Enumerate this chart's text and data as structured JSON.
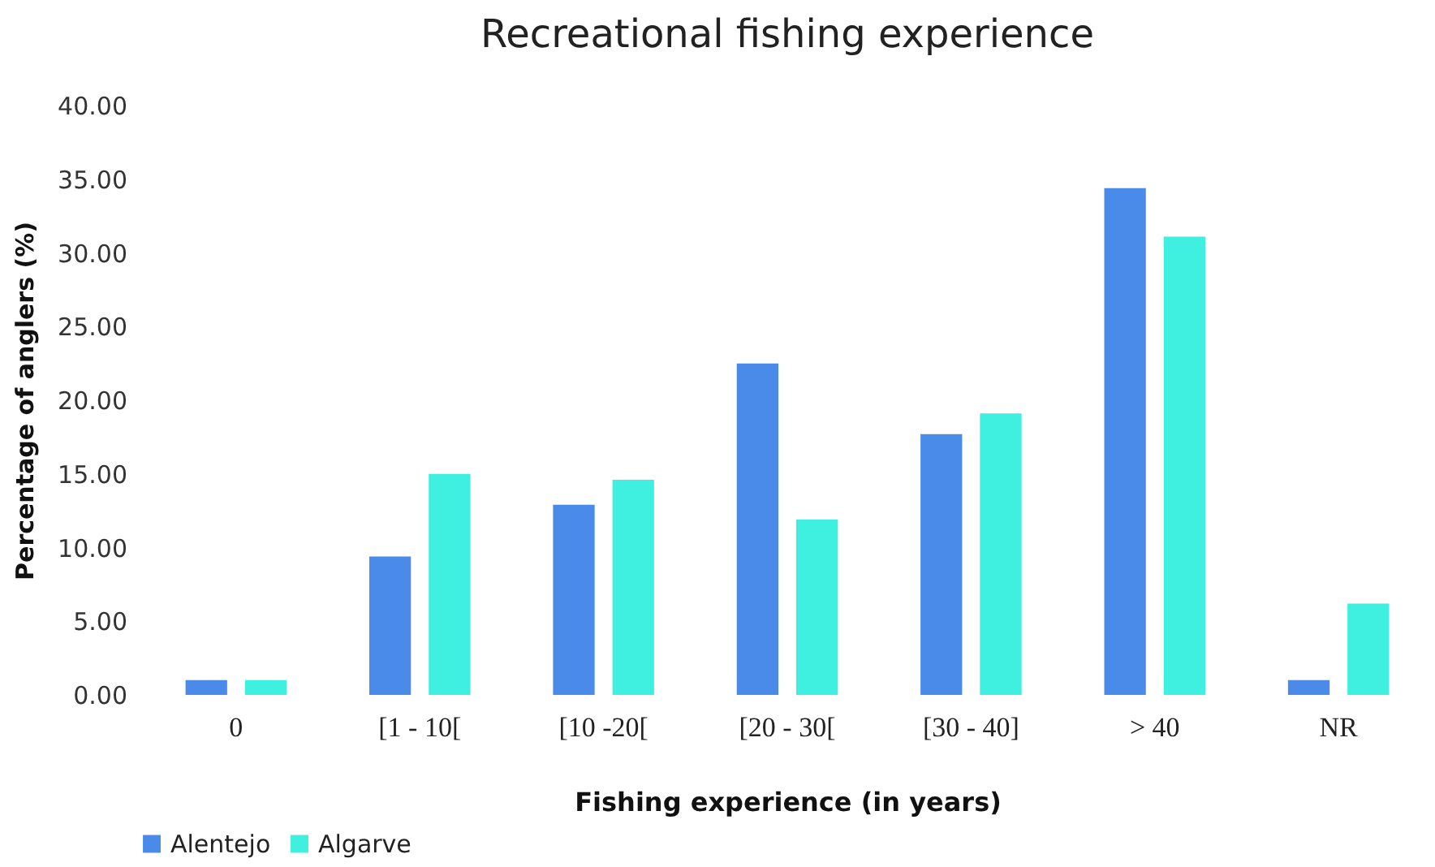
{
  "chart_data": {
    "type": "bar",
    "title": "Recreational fishing experience",
    "xlabel": "Fishing experience (in years)",
    "ylabel": "Percentage of anglers (%)",
    "categories": [
      "0",
      "[1 - 10[",
      "[10 -20[",
      "[20 - 30[",
      "[30 - 40]",
      "> 40",
      "NR"
    ],
    "series": [
      {
        "name": "Alentejo",
        "color": "#4a8bea",
        "values": [
          1.0,
          9.4,
          12.9,
          22.5,
          17.7,
          34.4,
          1.0
        ]
      },
      {
        "name": "Algarve",
        "color": "#3ff0e0",
        "values": [
          1.0,
          15.0,
          14.6,
          11.9,
          19.1,
          31.1,
          6.2
        ]
      }
    ],
    "ylim": [
      0,
      40
    ],
    "yticks": [
      {
        "value": 0,
        "label": "0.00"
      },
      {
        "value": 5,
        "label": "5.00"
      },
      {
        "value": 10,
        "label": "10.00"
      },
      {
        "value": 15,
        "label": "15.00"
      },
      {
        "value": 20,
        "label": "20.00"
      },
      {
        "value": 25,
        "label": "25.00"
      },
      {
        "value": 30,
        "label": "30.00"
      },
      {
        "value": 35,
        "label": "35.00"
      },
      {
        "value": 40,
        "label": "40.00"
      }
    ],
    "grid": false,
    "legend": "bottom"
  }
}
